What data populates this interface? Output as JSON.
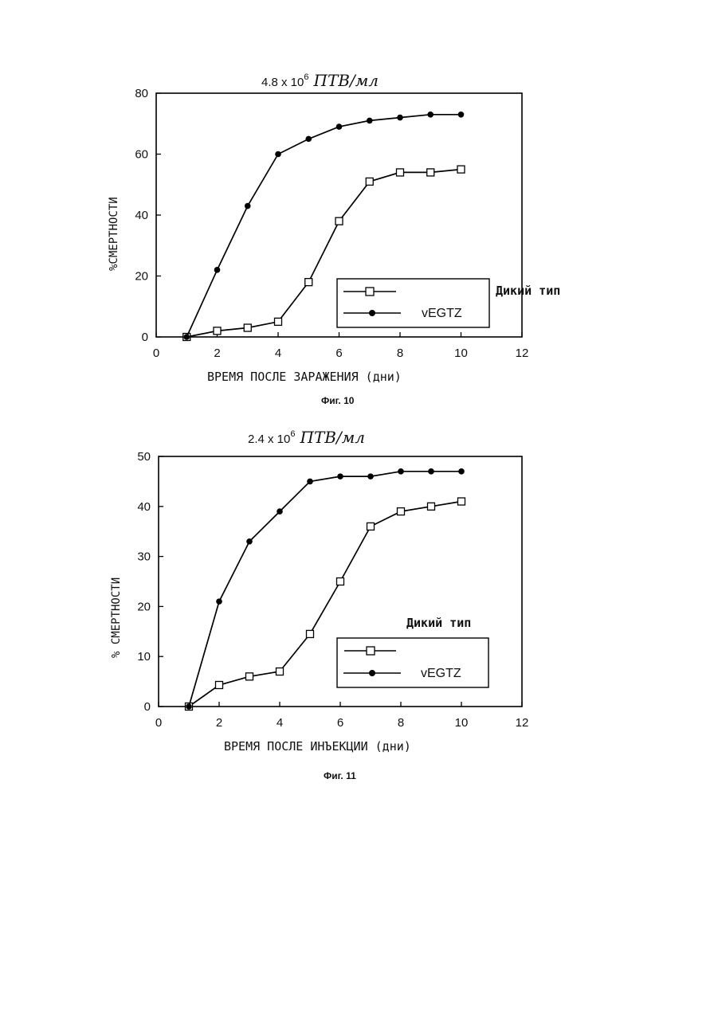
{
  "chart_data": [
    {
      "type": "line",
      "title_value": "4.8 x 10",
      "title_exp": "6",
      "title_unit": "ПТВ/мл",
      "xlabel": "ВРЕМЯ ПОСЛЕ ЗАРАЖЕНИЯ (дни)",
      "ylabel": "%СМЕРТНОСТИ",
      "caption": "Фиг. 10",
      "xlim": [
        0,
        12
      ],
      "ylim": [
        0,
        80
      ],
      "xticks": [
        0,
        2,
        4,
        6,
        8,
        10,
        12
      ],
      "yticks": [
        0,
        20,
        40,
        60,
        80
      ],
      "grid": false,
      "legend_position": "bottom-right",
      "series": [
        {
          "name": "Дикий тип",
          "marker": "open-square",
          "x": [
            1,
            2,
            3,
            4,
            5,
            6,
            7,
            8,
            9,
            10
          ],
          "y": [
            0,
            2,
            3,
            5,
            18,
            38,
            51,
            54,
            54,
            55
          ]
        },
        {
          "name": "vEGTZ",
          "marker": "filled-circle",
          "x": [
            1,
            2,
            3,
            4,
            5,
            6,
            7,
            8,
            9,
            10
          ],
          "y": [
            0,
            22,
            43,
            60,
            65,
            69,
            71,
            72,
            73,
            73
          ]
        }
      ]
    },
    {
      "type": "line",
      "title_value": "2.4 x 10",
      "title_exp": "6",
      "title_unit": "ПТВ/мл",
      "xlabel": "ВРЕМЯ ПОСЛЕ ИНЪЕКЦИИ (дни)",
      "ylabel": "% СМЕРТНОСТИ",
      "caption": "Фиг. 11",
      "xlim": [
        0,
        12
      ],
      "ylim": [
        0,
        50
      ],
      "xticks": [
        0,
        2,
        4,
        6,
        8,
        10,
        12
      ],
      "yticks": [
        0,
        10,
        20,
        30,
        40,
        50
      ],
      "grid": false,
      "legend_position": "bottom-right",
      "series": [
        {
          "name": "Дикий тип",
          "marker": "open-square",
          "x": [
            1,
            2,
            3,
            4,
            5,
            6,
            7,
            8,
            9,
            10
          ],
          "y": [
            0,
            4.3,
            6,
            7,
            14.5,
            25,
            36,
            39,
            40,
            41
          ]
        },
        {
          "name": "vEGTZ",
          "marker": "filled-circle",
          "x": [
            1,
            2,
            3,
            4,
            5,
            6,
            7,
            8,
            9,
            10
          ],
          "y": [
            0,
            21,
            33,
            39,
            45,
            46,
            46,
            47,
            47,
            47
          ]
        }
      ]
    }
  ]
}
